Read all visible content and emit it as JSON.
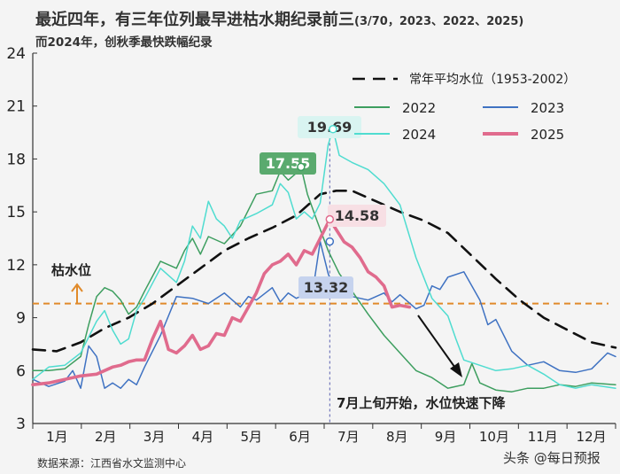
{
  "header": {
    "title": "最近四年，有三年位列最早进枯水期纪录前三",
    "title_note": "(3/70，2023、2022、2025)",
    "subtitle": "而2024年，创秋季最快跌幅纪录"
  },
  "footer": {
    "source": "数据来源：江西省水文监测中心",
    "watermark": "头条 @每日预报"
  },
  "chart_data": {
    "type": "line",
    "x_tick_labels": [
      "1月",
      "2月",
      "3月",
      "4月",
      "5月",
      "6月",
      "7月",
      "8月",
      "9月",
      "10月",
      "11月",
      "12月"
    ],
    "ylim": [
      3,
      24
    ],
    "yticks": [
      "3",
      "6",
      "9",
      "12",
      "15",
      "18",
      "21",
      "24"
    ],
    "grid": false,
    "legend_position": "top-right",
    "reference_line": {
      "label": "枯水位",
      "value": 9.8,
      "color": "#e08a2a"
    },
    "annotation": {
      "text": "7月上旬开始，水位快速下降"
    },
    "callouts": [
      {
        "series": "2022",
        "text": "17.55",
        "x": 168,
        "y": 17.55,
        "bg": "#5aaa6e",
        "fg": "#ffffff"
      },
      {
        "series": "2024",
        "text": "19.69",
        "x": 188,
        "y": 19.69,
        "bg": "#d9f4f1",
        "fg": "#333333"
      },
      {
        "series": "2025",
        "text": "14.58",
        "x": 186,
        "y": 14.58,
        "bg": "#f7dfe4",
        "fg": "#333333"
      },
      {
        "series": "2023",
        "text": "13.32",
        "x": 186,
        "y": 13.32,
        "bg": "#c6d3ee",
        "fg": "#333333"
      }
    ],
    "series": [
      {
        "name": "常年平均水位（1953-2002）",
        "color": "#111111",
        "dash": true,
        "width": 2.6,
        "x": [
          0,
          15,
          30,
          45,
          60,
          75,
          90,
          105,
          120,
          135,
          150,
          165,
          180,
          190,
          200,
          215,
          230,
          245,
          260,
          275,
          290,
          305,
          320,
          335,
          350,
          365
        ],
        "y": [
          7.2,
          7.1,
          7.6,
          8.4,
          9.0,
          9.8,
          10.8,
          11.8,
          12.8,
          13.5,
          14.1,
          14.8,
          16.0,
          16.2,
          16.2,
          15.6,
          15.0,
          14.5,
          13.8,
          12.5,
          11.2,
          10.0,
          9.0,
          8.3,
          7.6,
          7.3
        ]
      },
      {
        "name": "2022",
        "color": "#3d9e5f",
        "dash": false,
        "width": 1.5,
        "x": [
          0,
          10,
          20,
          30,
          35,
          40,
          45,
          50,
          55,
          60,
          65,
          70,
          80,
          90,
          95,
          100,
          105,
          110,
          120,
          130,
          140,
          150,
          155,
          160,
          165,
          168,
          172,
          178,
          185,
          192,
          200,
          210,
          220,
          230,
          240,
          250,
          260,
          270,
          275,
          280,
          290,
          300,
          310,
          320,
          330,
          340,
          350,
          365
        ],
        "y": [
          6.0,
          6.0,
          6.1,
          6.8,
          8.6,
          10.2,
          10.7,
          10.5,
          10.0,
          9.2,
          9.6,
          10.5,
          12.2,
          11.8,
          12.8,
          13.5,
          12.6,
          13.6,
          13.2,
          14.2,
          16.0,
          16.2,
          17.3,
          16.8,
          17.2,
          17.55,
          16.0,
          14.5,
          12.8,
          11.5,
          10.5,
          9.2,
          8.0,
          7.0,
          6.0,
          5.6,
          5.0,
          5.2,
          6.4,
          5.3,
          4.9,
          4.8,
          5.0,
          5.0,
          5.2,
          5.1,
          5.3,
          5.2
        ]
      },
      {
        "name": "2023",
        "color": "#3f72c2",
        "dash": false,
        "width": 1.5,
        "x": [
          0,
          10,
          20,
          25,
          30,
          35,
          40,
          45,
          50,
          55,
          60,
          65,
          70,
          80,
          90,
          100,
          110,
          120,
          130,
          135,
          140,
          150,
          155,
          160,
          165,
          170,
          176,
          180,
          185,
          190,
          195,
          200,
          210,
          220,
          225,
          230,
          240,
          245,
          250,
          255,
          260,
          270,
          280,
          285,
          290,
          300,
          310,
          320,
          330,
          340,
          350,
          360,
          365
        ],
        "y": [
          5.5,
          5.1,
          5.4,
          6.0,
          5.0,
          7.4,
          6.8,
          5.0,
          5.3,
          5.0,
          5.5,
          5.2,
          6.2,
          8.0,
          10.2,
          10.1,
          9.8,
          10.4,
          9.6,
          10.2,
          10.0,
          10.7,
          9.9,
          10.4,
          10.1,
          10.3,
          10.9,
          13.32,
          11.5,
          10.3,
          10.6,
          10.2,
          10.0,
          10.4,
          9.9,
          10.3,
          9.5,
          9.7,
          10.8,
          10.6,
          11.3,
          11.6,
          10.0,
          8.6,
          8.9,
          7.1,
          6.3,
          6.5,
          6.0,
          5.9,
          6.1,
          7.0,
          6.8
        ]
      },
      {
        "name": "2024",
        "color": "#4fdcd0",
        "dash": false,
        "width": 1.5,
        "x": [
          0,
          10,
          20,
          30,
          40,
          45,
          50,
          55,
          60,
          65,
          70,
          80,
          90,
          95,
          100,
          105,
          110,
          115,
          120,
          125,
          130,
          140,
          150,
          155,
          160,
          165,
          170,
          175,
          180,
          185,
          188,
          192,
          200,
          210,
          220,
          230,
          240,
          250,
          260,
          265,
          270,
          280,
          290,
          300,
          310,
          320,
          330,
          340,
          350,
          365
        ],
        "y": [
          5.5,
          6.2,
          6.3,
          7.0,
          8.8,
          9.4,
          8.3,
          7.5,
          7.8,
          9.4,
          10.1,
          11.8,
          11.0,
          12.2,
          14.2,
          13.5,
          15.6,
          14.6,
          14.2,
          13.5,
          14.5,
          14.9,
          15.4,
          16.6,
          16.1,
          14.6,
          15.0,
          14.6,
          15.5,
          18.8,
          19.69,
          18.2,
          17.8,
          17.4,
          16.6,
          15.4,
          12.4,
          10.1,
          9.1,
          7.8,
          6.6,
          6.3,
          6.0,
          6.1,
          6.3,
          5.8,
          5.2,
          5.0,
          5.2,
          5.0
        ]
      },
      {
        "name": "2025",
        "color": "#e06b8d",
        "dash": false,
        "width": 3.6,
        "x": [
          0,
          10,
          20,
          30,
          40,
          50,
          55,
          60,
          65,
          70,
          75,
          80,
          85,
          90,
          95,
          100,
          105,
          110,
          115,
          120,
          125,
          130,
          135,
          140,
          145,
          150,
          155,
          160,
          165,
          170,
          175,
          180,
          186,
          190,
          195,
          200,
          205,
          210,
          215,
          220,
          225,
          230,
          236
        ],
        "y": [
          5.2,
          5.3,
          5.5,
          5.7,
          5.8,
          6.2,
          6.3,
          6.5,
          6.6,
          6.6,
          7.8,
          8.8,
          7.2,
          7.0,
          7.4,
          8.0,
          7.2,
          7.4,
          8.1,
          8.0,
          9.0,
          8.8,
          9.6,
          10.4,
          11.5,
          12.0,
          12.2,
          12.6,
          12.0,
          12.8,
          12.6,
          13.5,
          14.58,
          14.0,
          13.3,
          13.0,
          12.4,
          11.6,
          11.3,
          10.8,
          9.6,
          9.7,
          9.6
        ]
      }
    ]
  }
}
